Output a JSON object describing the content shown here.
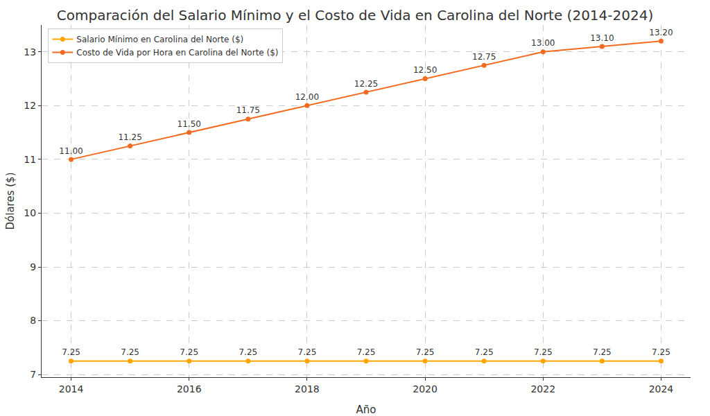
{
  "chart_data": {
    "type": "line",
    "title": "Comparación del Salario Mínimo y el Costo de Vida en Carolina del Norte (2014-2024)",
    "x_label": "Año",
    "y_label": "Dólares ($)",
    "x": [
      2014,
      2015,
      2016,
      2017,
      2018,
      2019,
      2020,
      2021,
      2022,
      2023,
      2024
    ],
    "series": [
      {
        "name": "Salario Mínimo en Carolina del Norte ($)",
        "color": "#ffa500",
        "marker": "o",
        "line_style": "solid",
        "values": [
          7.25,
          7.25,
          7.25,
          7.25,
          7.25,
          7.25,
          7.25,
          7.25,
          7.25,
          7.25,
          7.25
        ],
        "value_labels": [
          "7.25",
          "7.25",
          "7.25",
          "7.25",
          "7.25",
          "7.25",
          "7.25",
          "7.25",
          "7.25",
          "7.25",
          "7.25"
        ]
      },
      {
        "name": "Costo de Vida por Hora en Carolina del Norte ($)",
        "color": "#f26b21",
        "marker": "o",
        "line_style": "solid",
        "values": [
          11.0,
          11.25,
          11.5,
          11.75,
          12.0,
          12.25,
          12.5,
          12.75,
          13.0,
          13.1,
          13.2
        ],
        "value_labels": [
          "11.00",
          "11.25",
          "11.50",
          "11.75",
          "12.00",
          "12.25",
          "12.50",
          "12.75",
          "13.00",
          "13.10",
          "13.20"
        ]
      }
    ],
    "xlim": [
      2013.5,
      2024.5
    ],
    "xticks": [
      2014,
      2016,
      2018,
      2020,
      2022,
      2024
    ],
    "ylim": [
      6.95,
      13.5
    ],
    "yticks": [
      7,
      8,
      9,
      10,
      11,
      12,
      13
    ],
    "grid": true,
    "legend": "upper left",
    "data_labels": true
  }
}
